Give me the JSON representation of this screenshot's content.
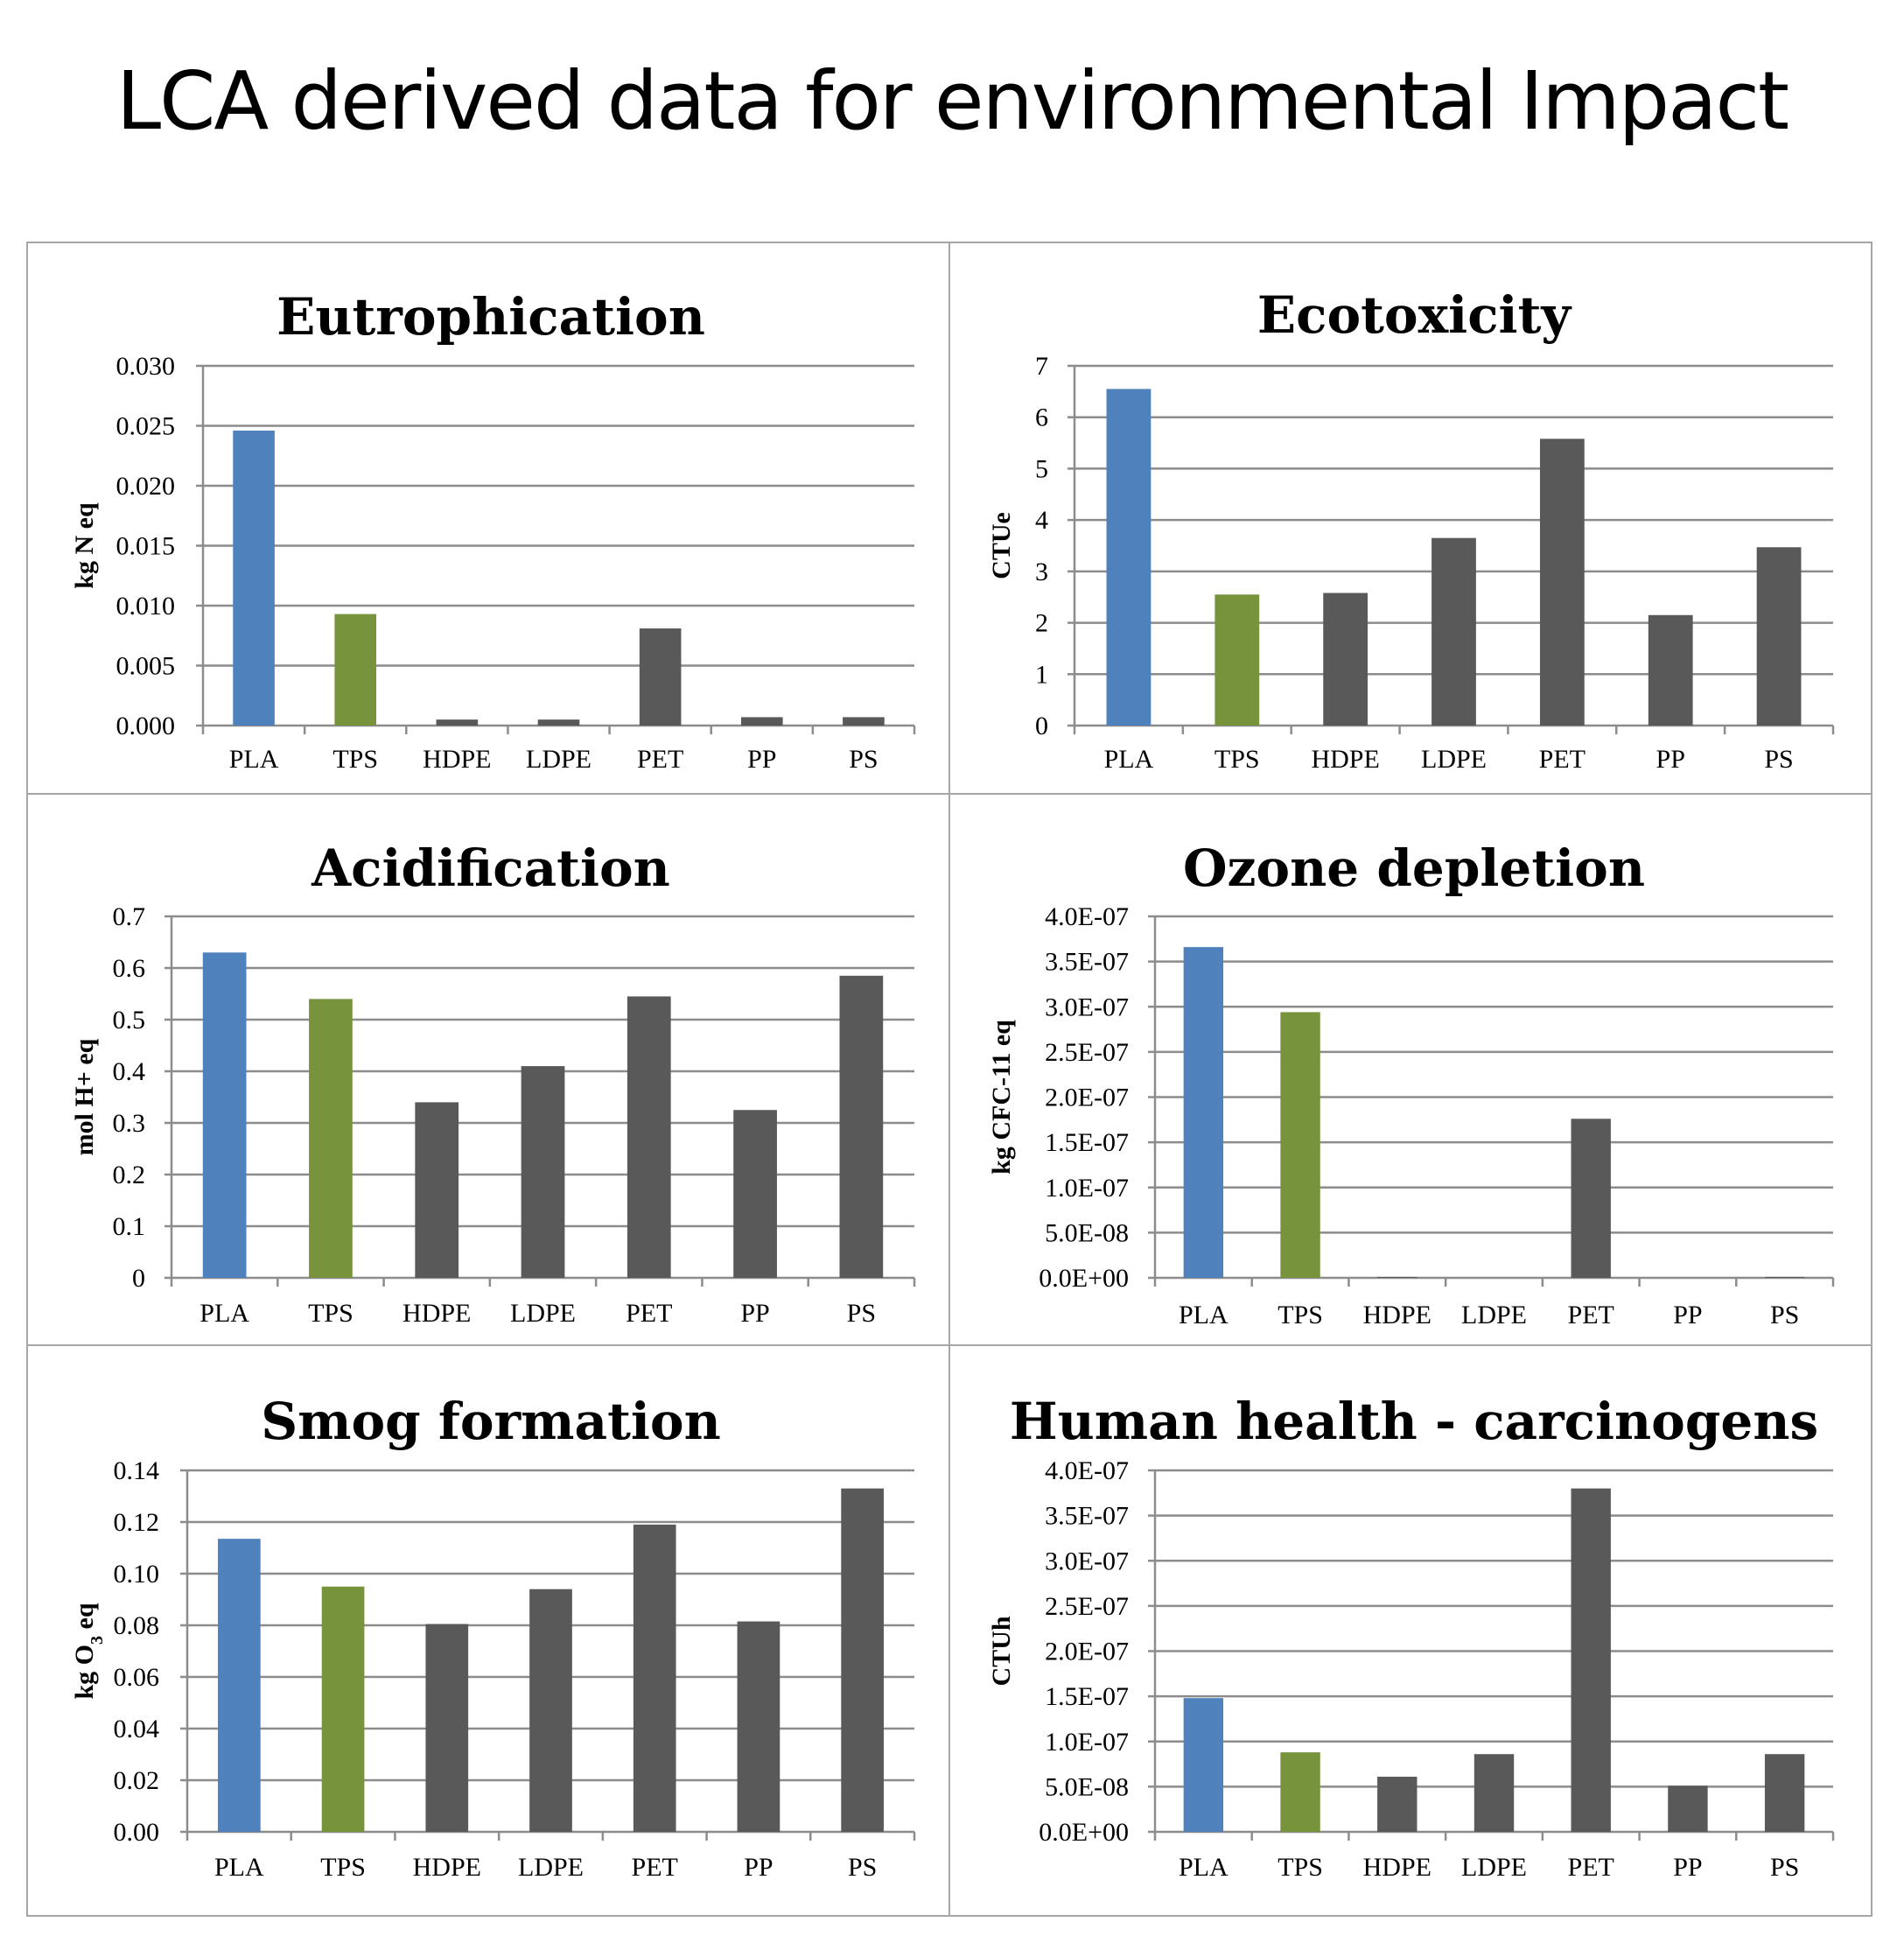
{
  "page_title": "LCA derived data for environmental Impact",
  "chart_data": [
    {
      "type": "bar",
      "title": "Eutrophication",
      "ylabel": "kg N eq",
      "categories": [
        "PLA",
        "TPS",
        "HDPE",
        "LDPE",
        "PET",
        "PP",
        "PS"
      ],
      "values": [
        0.0246,
        0.0093,
        0.0005,
        0.0005,
        0.0081,
        0.0007,
        0.0007
      ],
      "yticks": [
        "0.000",
        "0.005",
        "0.010",
        "0.015",
        "0.020",
        "0.025",
        "0.030"
      ],
      "ylim": [
        0,
        0.03
      ],
      "grid": true
    },
    {
      "type": "bar",
      "title": "Ecotoxicity",
      "ylabel": "CTUe",
      "categories": [
        "PLA",
        "TPS",
        "HDPE",
        "LDPE",
        "PET",
        "PP",
        "PS"
      ],
      "values": [
        6.55,
        2.55,
        2.58,
        3.65,
        5.58,
        2.15,
        3.47
      ],
      "yticks": [
        "0",
        "1",
        "2",
        "3",
        "4",
        "5",
        "6",
        "7"
      ],
      "ylim": [
        0,
        7
      ],
      "grid": true
    },
    {
      "type": "bar",
      "title": "Acidification",
      "ylabel": "mol H+ eq",
      "categories": [
        "PLA",
        "TPS",
        "HDPE",
        "LDPE",
        "PET",
        "PP",
        "PS"
      ],
      "values": [
        0.63,
        0.54,
        0.34,
        0.41,
        0.545,
        0.325,
        0.585
      ],
      "yticks": [
        "0",
        "0.1",
        "0.2",
        "0.3",
        "0.4",
        "0.5",
        "0.6",
        "0.7"
      ],
      "ylim": [
        0,
        0.7
      ],
      "grid": true
    },
    {
      "type": "bar",
      "title": "Ozone depletion",
      "ylabel": "kg CFC-11 eq",
      "categories": [
        "PLA",
        "TPS",
        "HDPE",
        "LDPE",
        "PET",
        "PP",
        "PS"
      ],
      "values": [
        3.66e-07,
        2.94e-07,
        1e-09,
        0,
        1.76e-07,
        0,
        1e-09
      ],
      "yticks": [
        "0.0E+00",
        "5.0E-08",
        "1.0E-07",
        "1.5E-07",
        "2.0E-07",
        "2.5E-07",
        "3.0E-07",
        "3.5E-07",
        "4.0E-07"
      ],
      "ylim": [
        0,
        4e-07
      ],
      "grid": true
    },
    {
      "type": "bar",
      "title": "Smog formation",
      "ylabel": "kg O3 eq",
      "ylabel_base": "kg O",
      "ylabel_sub": "3",
      "ylabel_tail": " eq",
      "categories": [
        "PLA",
        "TPS",
        "HDPE",
        "LDPE",
        "PET",
        "PP",
        "PS"
      ],
      "values": [
        0.1135,
        0.095,
        0.0805,
        0.094,
        0.119,
        0.0815,
        0.133
      ],
      "yticks": [
        "0.00",
        "0.02",
        "0.04",
        "0.06",
        "0.08",
        "0.10",
        "0.12",
        "0.14"
      ],
      "ylim": [
        0,
        0.14
      ],
      "grid": true
    },
    {
      "type": "bar",
      "title": "Human health - carcinogens",
      "ylabel": "CTUh",
      "categories": [
        "PLA",
        "TPS",
        "HDPE",
        "LDPE",
        "PET",
        "PP",
        "PS"
      ],
      "values": [
        1.48e-07,
        8.8e-08,
        6.1e-08,
        8.6e-08,
        3.8e-07,
        5.1e-08,
        8.6e-08
      ],
      "yticks": [
        "0.0E+00",
        "5.0E-08",
        "1.0E-07",
        "1.5E-07",
        "2.0E-07",
        "2.5E-07",
        "3.0E-07",
        "3.5E-07",
        "4.0E-07"
      ],
      "ylim": [
        0,
        4e-07
      ],
      "grid": true
    }
  ],
  "colors": {
    "PLA": "#4f81bd",
    "TPS": "#77933c",
    "other": "#595959",
    "grid": "#8c8c8c"
  }
}
